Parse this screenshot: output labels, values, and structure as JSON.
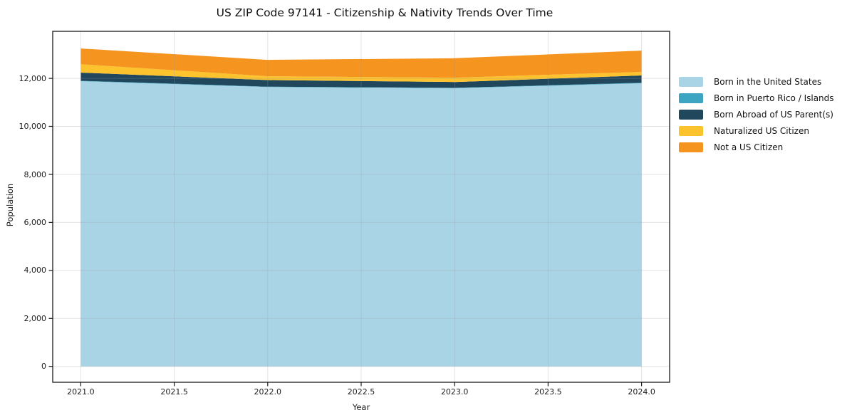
{
  "chart_data": {
    "type": "area",
    "stacked": true,
    "title": "US ZIP Code 97141 - Citizenship & Nativity Trends Over Time",
    "xlabel": "Year",
    "ylabel": "Population",
    "x": [
      2021,
      2022,
      2023,
      2024
    ],
    "series": [
      {
        "name": "Born in the United States",
        "color": "#A9D4E6",
        "values": [
          11880,
          11640,
          11590,
          11795
        ]
      },
      {
        "name": "Born in Puerto Rico / Islands",
        "color": "#3DA5C2",
        "values": [
          20,
          15,
          15,
          25
        ]
      },
      {
        "name": "Born Abroad of US Parent(s)",
        "color": "#21475D",
        "values": [
          340,
          275,
          245,
          300
        ]
      },
      {
        "name": "Naturalized US Citizen",
        "color": "#FCC32F",
        "values": [
          350,
          160,
          180,
          150
        ]
      },
      {
        "name": "Not a US Citizen",
        "color": "#F5941E",
        "values": [
          655,
          680,
          810,
          885
        ]
      }
    ],
    "totals_by_year": [
      13245,
      12770,
      12840,
      13155
    ],
    "x_ticks": [
      2021.0,
      2021.5,
      2022.0,
      2022.5,
      2023.0,
      2023.5,
      2024.0
    ],
    "x_tick_labels": [
      "2021.0",
      "2021.5",
      "2022.0",
      "2022.5",
      "2023.0",
      "2023.5",
      "2024.0"
    ],
    "y_ticks": [
      0,
      2000,
      4000,
      6000,
      8000,
      10000,
      12000
    ],
    "y_tick_labels": [
      "0",
      "2,000",
      "4,000",
      "6,000",
      "8,000",
      "10,000",
      "12,000"
    ],
    "xlim": [
      2020.85,
      2024.15
    ],
    "ylim": [
      -660,
      13960
    ],
    "grid": true,
    "legend_position": "right-outside",
    "colors": {
      "frame": "#1a1a1a",
      "grid": "#9a9aa2",
      "background": "#ffffff"
    }
  }
}
